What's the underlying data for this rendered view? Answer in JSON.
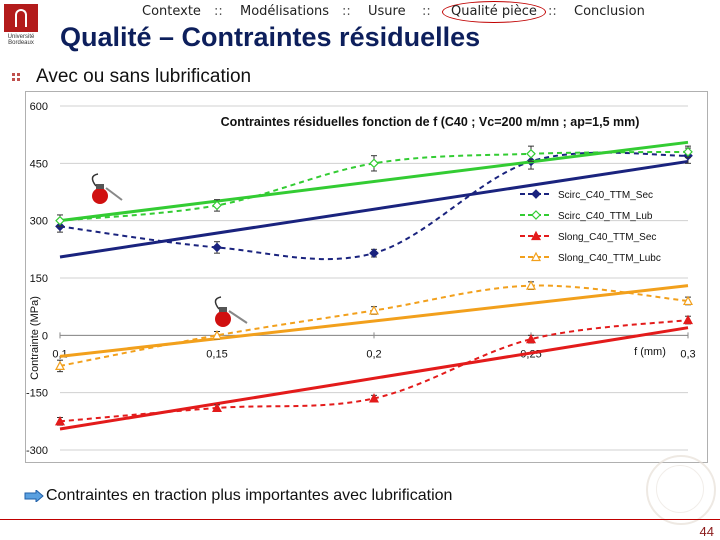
{
  "nav": {
    "items": [
      "Contexte",
      "Modélisations",
      "Usure",
      "Qualité pièce",
      "Conclusion"
    ],
    "separator": "::",
    "active": "Qualité pièce"
  },
  "logo": {
    "text": "Université Bordeaux"
  },
  "slide": {
    "title": "Qualité – Contraintes résiduelles",
    "subtitle": "Avec ou sans lubrification",
    "conclusion": "Contraintes en traction plus importantes avec lubrification",
    "page_number": "44"
  },
  "colors": {
    "title": "#0d1f5c",
    "accent": "#c00000",
    "blue": "#1a237e",
    "green": "#33cc33",
    "red": "#e31b1b",
    "orange": "#f2a01c"
  },
  "chart_data": {
    "type": "line",
    "title": "Contraintes résiduelles fonction de f (C40 ; Vc=200 m/mn ; ap=1,5 mm)",
    "xlabel": "f (mm)",
    "ylabel": "Contrainte (MPa)",
    "xlim": [
      0.1,
      0.3
    ],
    "ylim": [
      -300,
      600
    ],
    "xticks": [
      "0,1",
      "0,15",
      "0,2",
      "0,25",
      "0,3"
    ],
    "yticks": [
      "600",
      "450",
      "300",
      "150",
      "0",
      "-150",
      "-300"
    ],
    "legend": "right",
    "series": [
      {
        "name": "Scirc_C40_TTM_Sec",
        "color": "#1a237e",
        "marker": "diamond",
        "x": [
          0.1,
          0.15,
          0.2,
          0.25,
          0.3
        ],
        "y": [
          285,
          230,
          215,
          455,
          470
        ],
        "err": [
          15,
          15,
          10,
          20,
          20
        ],
        "trend": [
          205,
          455
        ]
      },
      {
        "name": "Scirc_C40_TTM_Lub",
        "color": "#33cc33",
        "marker": "diamond-open",
        "x": [
          0.1,
          0.15,
          0.2,
          0.25,
          0.3
        ],
        "y": [
          300,
          340,
          450,
          475,
          480
        ],
        "err": [
          15,
          15,
          20,
          20,
          15
        ],
        "trend": [
          300,
          505
        ]
      },
      {
        "name": "Slong_C40_TTM_Sec",
        "color": "#e31b1b",
        "marker": "triangle",
        "x": [
          0.1,
          0.15,
          0.2,
          0.25,
          0.3
        ],
        "y": [
          -225,
          -190,
          -165,
          -10,
          40
        ],
        "err": [
          10,
          8,
          8,
          10,
          10
        ],
        "trend": [
          -245,
          20
        ]
      },
      {
        "name": "Slong_C40_TTM_Lubc",
        "color": "#f2a01c",
        "marker": "triangle-open",
        "x": [
          0.1,
          0.15,
          0.2,
          0.25,
          0.3
        ],
        "y": [
          -80,
          0,
          65,
          130,
          90
        ],
        "err": [
          15,
          10,
          10,
          10,
          10
        ],
        "trend": [
          -55,
          130
        ]
      }
    ]
  }
}
